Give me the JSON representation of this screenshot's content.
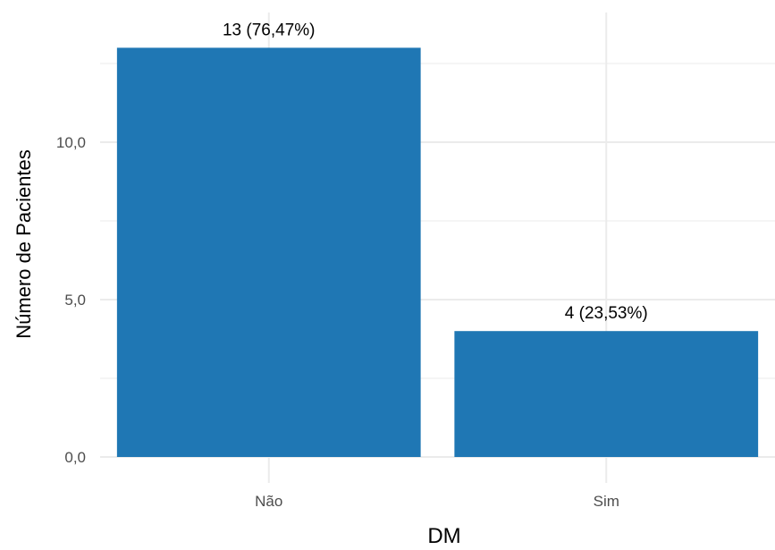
{
  "chart_data": {
    "type": "bar",
    "title": "",
    "xlabel": "DM",
    "ylabel": "Número de Pacientes",
    "categories": [
      "Não",
      "Sim"
    ],
    "values": [
      13,
      4
    ],
    "data_labels": [
      "13 (76,47%)",
      "4 (23,53%)"
    ],
    "ylim": [
      0,
      13.5
    ],
    "y_ticks": [
      0,
      5,
      10
    ],
    "y_tick_labels": [
      "0,0",
      "5,0",
      "10,0"
    ],
    "grid": true,
    "legend": "none",
    "colors": {
      "bar": "#1F77B4",
      "grid": "#EBEBEB",
      "tick_text": "#4D4D4D",
      "axis_title": "#000000",
      "label_text": "#000000"
    }
  }
}
